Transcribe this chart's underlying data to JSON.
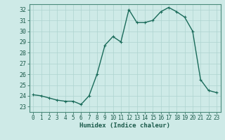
{
  "x": [
    0,
    1,
    2,
    3,
    4,
    5,
    6,
    7,
    8,
    9,
    10,
    11,
    12,
    13,
    14,
    15,
    16,
    17,
    18,
    19,
    20,
    21,
    22,
    23
  ],
  "y": [
    24.1,
    24.0,
    23.8,
    23.6,
    23.5,
    23.5,
    23.2,
    24.0,
    26.0,
    28.7,
    29.5,
    29.0,
    32.0,
    30.8,
    30.8,
    31.0,
    31.8,
    32.2,
    31.8,
    31.3,
    30.0,
    25.5,
    24.5,
    24.3
  ],
  "xlabel": "Humidex (Indice chaleur)",
  "xlim": [
    -0.5,
    23.5
  ],
  "ylim": [
    22.5,
    32.5
  ],
  "yticks": [
    23,
    24,
    25,
    26,
    27,
    28,
    29,
    30,
    31,
    32
  ],
  "xticks": [
    0,
    1,
    2,
    3,
    4,
    5,
    6,
    7,
    8,
    9,
    10,
    11,
    12,
    13,
    14,
    15,
    16,
    17,
    18,
    19,
    20,
    21,
    22,
    23
  ],
  "line_color": "#1a6b5a",
  "marker_color": "#1a6b5a",
  "bg_color": "#ceeae7",
  "grid_color": "#aed4d0",
  "axis_color": "#4a8a7a",
  "tick_label_color": "#1a5a4a",
  "xlabel_color": "#1a5a4a",
  "linewidth": 1.0,
  "markersize": 3.5,
  "tick_fontsize": 5.5,
  "xlabel_fontsize": 6.5
}
